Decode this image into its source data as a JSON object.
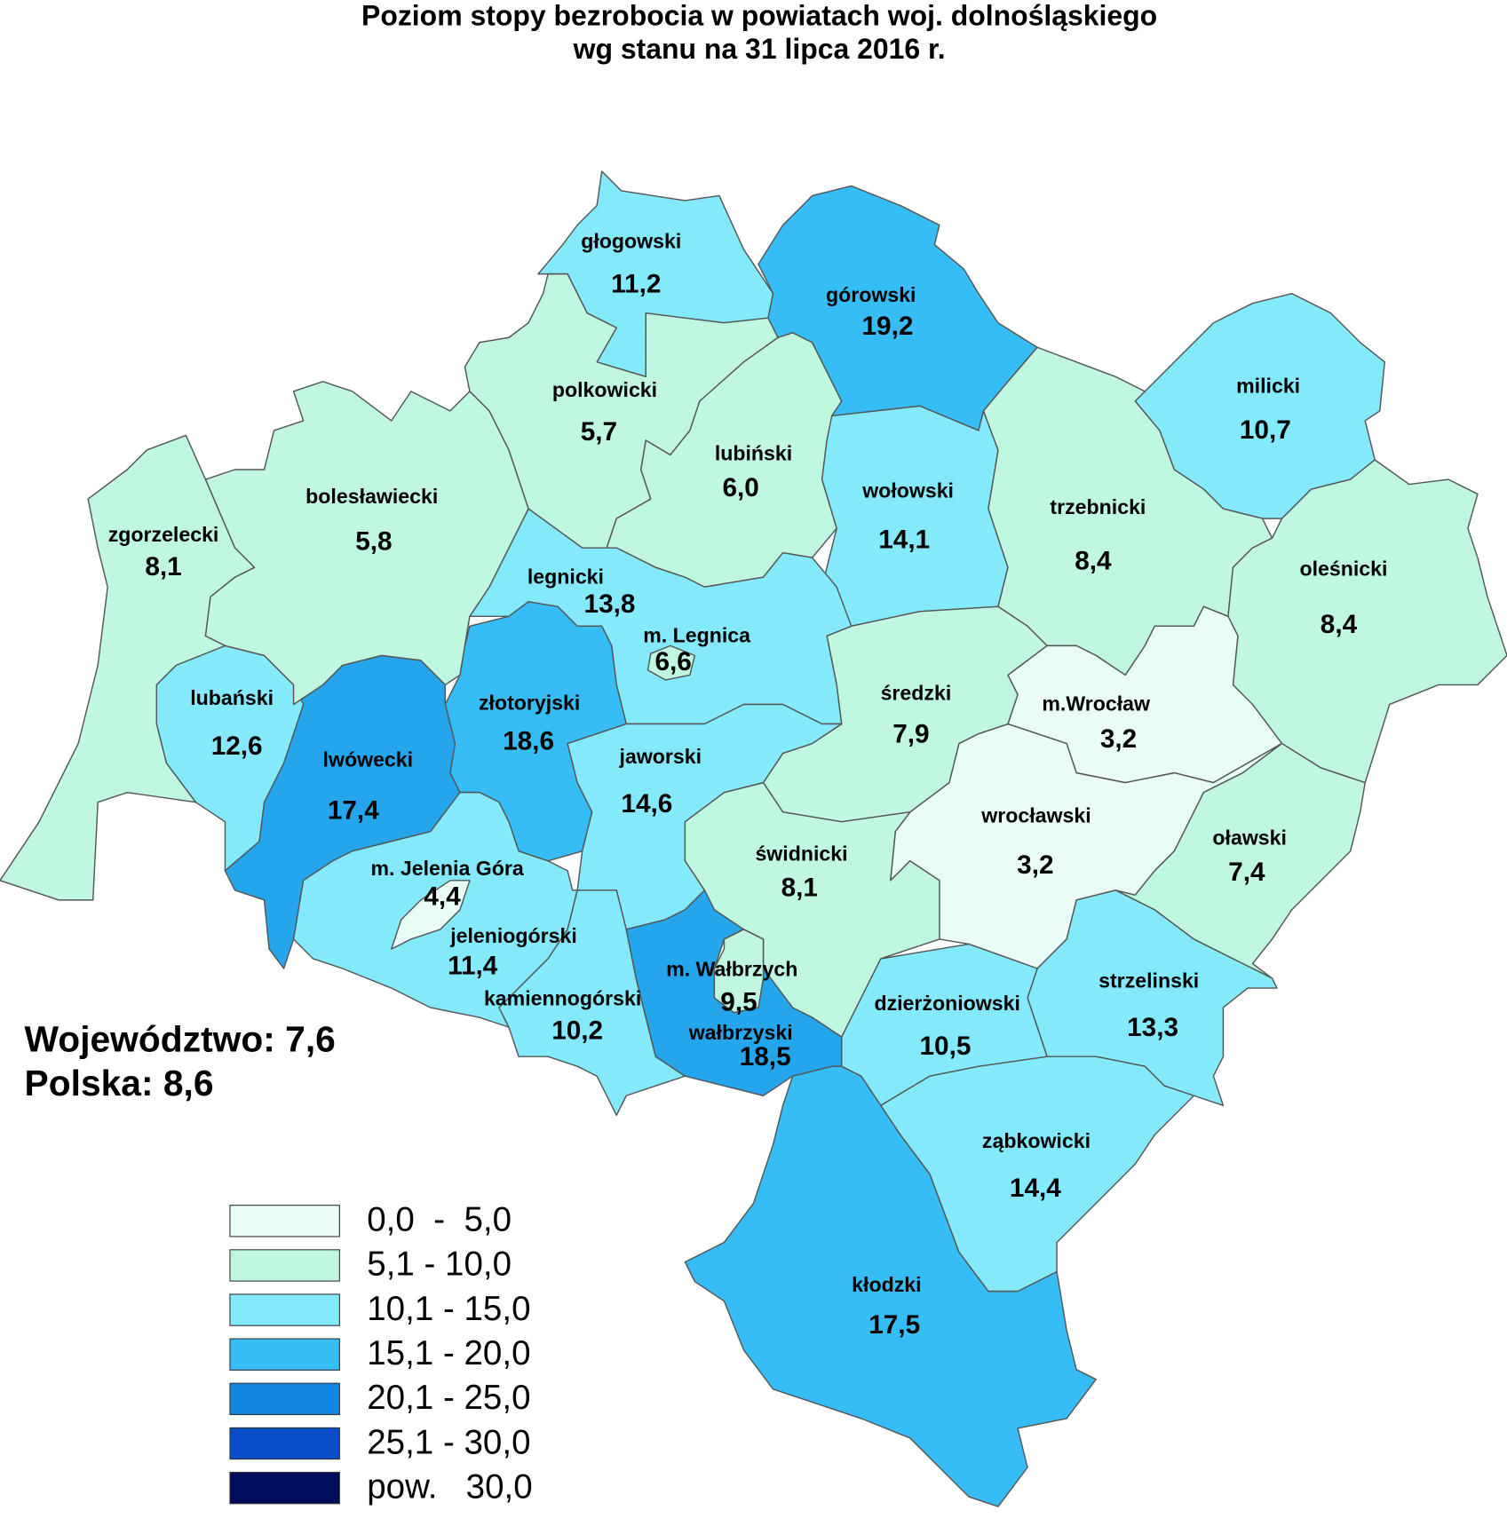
{
  "title": [
    "Poziom stopy bezrobocia w powiatach woj. dolnośląskiego",
    "wg stanu na 31 lipca 2016 r."
  ],
  "regions": [
    {
      "name": "głogowski",
      "value": "11,2",
      "color": "#84eafb"
    },
    {
      "name": "polkowicki",
      "value": "5,7",
      "color": "#bff7e0"
    },
    {
      "name": "lubiński",
      "value": "6,0",
      "color": "#bff7e0"
    },
    {
      "name": "górowski",
      "value": "19,2",
      "color": "#36bdf5"
    },
    {
      "name": "milicki",
      "value": "10,7",
      "color": "#84eafb"
    },
    {
      "name": "wołowski",
      "value": "14,1",
      "color": "#84eafb"
    },
    {
      "name": "trzebnicki",
      "value": "8,4",
      "color": "#bff7e0"
    },
    {
      "name": "oleśnicki",
      "value": "8,4",
      "color": "#bff7e0"
    },
    {
      "name": "m.Wrocław",
      "value": "3,2",
      "color": "#e9fcf5"
    },
    {
      "name": "wrocławski",
      "value": "3,2",
      "color": "#e9fcf5"
    },
    {
      "name": "średzki",
      "value": "7,9",
      "color": "#bff7e0"
    },
    {
      "name": "oławski",
      "value": "7,4",
      "color": "#bff7e0"
    },
    {
      "name": "strzelinski",
      "value": "13,3",
      "color": "#84eafb"
    },
    {
      "name": "ząbkowicki",
      "value": "14,4",
      "color": "#84eafb"
    },
    {
      "name": "dzierżoniowski",
      "value": "10,5",
      "color": "#84eafb"
    },
    {
      "name": "kłodzki",
      "value": "17,5",
      "color": "#36bdf5"
    },
    {
      "name": "świdnicki",
      "value": "8,1",
      "color": "#bff7e0"
    },
    {
      "name": "legnicki",
      "value": "13,8",
      "color": "#84eafb"
    },
    {
      "name": "złotoryjski",
      "value": "18,6",
      "color": "#36bdf5"
    },
    {
      "name": "jaworski",
      "value": "14,6",
      "color": "#84eafb"
    },
    {
      "name": "lwówecki",
      "value": "17,4",
      "color": "#25a6ec"
    },
    {
      "name": "lubański",
      "value": "12,6",
      "color": "#84eafb"
    },
    {
      "name": "bolesławiecki",
      "value": "5,8",
      "color": "#bff7e0"
    },
    {
      "name": "zgorzelecki",
      "value": "8,1",
      "color": "#bff7e0"
    },
    {
      "name": "jeleniogórski",
      "value": "11,4",
      "color": "#84eafb"
    },
    {
      "name": "kamiennogórski",
      "value": "10,2",
      "color": "#84eafb"
    },
    {
      "name": "wałbrzyski",
      "value": "18,5",
      "color": "#25a6ec"
    },
    {
      "name": "m. Legnica",
      "value": "6,6",
      "color": "#bff7e0"
    },
    {
      "name": "m. Jelenia Góra",
      "value": "4,4",
      "color": "#e9fcf5"
    },
    {
      "name": "m. Wałbrzych",
      "value": "9,5",
      "color": "#bff7e0"
    }
  ],
  "summary": [
    "Województwo: 7,6",
    "Polska: 8,6"
  ],
  "legend": [
    {
      "label": "0,0  -  5,0",
      "color": "#e9fcf5"
    },
    {
      "label": "5,1 - 10,0",
      "color": "#bff7e0"
    },
    {
      "label": "10,1 - 15,0",
      "color": "#84eafb"
    },
    {
      "label": "15,1 - 20,0",
      "color": "#36bdf5"
    },
    {
      "label": "20,1 - 25,0",
      "color": "#1186e0"
    },
    {
      "label": "25,1 - 30,0",
      "color": "#0a4dc8"
    },
    {
      "label": "pow.   30,0",
      "color": "#000c5c"
    }
  ]
}
